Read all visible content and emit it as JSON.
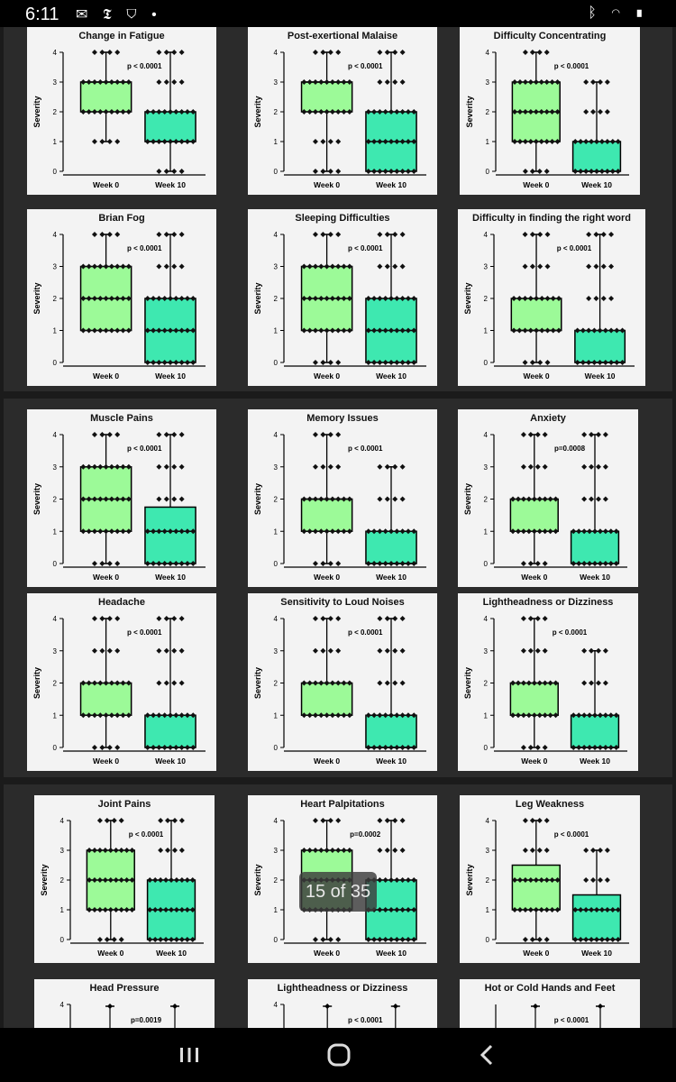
{
  "status_bar": {
    "time": "6:11",
    "left_icons": [
      "messenger-icon",
      "nytimes-icon",
      "shield-icon",
      "dot-icon"
    ],
    "right_icons": [
      "bluetooth-icon",
      "wifi-icon",
      "battery-icon"
    ]
  },
  "viewer": {
    "page_counter": "15 of 35"
  },
  "colors": {
    "week0": "#9cfa98",
    "week10": "#3ee8b0",
    "card_bg": "#f3f3f3",
    "page_bg": "#2b2b2b"
  },
  "chart_data": [
    {
      "type": "box",
      "title": "Change in Fatigue",
      "ylabel": "Severity",
      "categories": [
        "Week 0",
        "Week 10"
      ],
      "ylim": [
        0,
        4
      ],
      "yticks": [
        "0",
        "1",
        "2",
        "3",
        "4"
      ],
      "p_value": "p < 0.0001",
      "boxes": [
        {
          "min": 1,
          "q1": 2,
          "median": 3,
          "q3": 3,
          "max": 4
        },
        {
          "min": 0,
          "q1": 1,
          "median": 1,
          "q3": 2,
          "max": 4
        }
      ]
    },
    {
      "type": "box",
      "title": "Post-exertional Malaise",
      "ylabel": "Severity",
      "categories": [
        "Week 0",
        "Week 10"
      ],
      "ylim": [
        0,
        4
      ],
      "yticks": [
        "0",
        "1",
        "2",
        "3",
        "4"
      ],
      "p_value": "p < 0.0001",
      "boxes": [
        {
          "min": 0,
          "q1": 2,
          "median": 3,
          "q3": 3,
          "max": 4
        },
        {
          "min": 0,
          "q1": 0,
          "median": 1,
          "q3": 2,
          "max": 4
        }
      ]
    },
    {
      "type": "box",
      "title": "Difficulty Concentrating",
      "ylabel": "Severity",
      "categories": [
        "Week 0",
        "Week 10"
      ],
      "ylim": [
        0,
        4
      ],
      "yticks": [
        "0",
        "1",
        "2",
        "3",
        "4"
      ],
      "p_value": "p < 0.0001",
      "boxes": [
        {
          "min": 0,
          "q1": 1,
          "median": 2,
          "q3": 3,
          "max": 4
        },
        {
          "min": 0,
          "q1": 0,
          "median": 0,
          "q3": 1,
          "max": 3
        }
      ]
    },
    {
      "type": "box",
      "title": "Brian Fog",
      "ylabel": "Severity",
      "categories": [
        "Week 0",
        "Week 10"
      ],
      "ylim": [
        0,
        4
      ],
      "yticks": [
        "0",
        "1",
        "2",
        "3",
        "4"
      ],
      "p_value": "p < 0.0001",
      "boxes": [
        {
          "min": 1,
          "q1": 1,
          "median": 2,
          "q3": 3,
          "max": 4
        },
        {
          "min": 0,
          "q1": 0,
          "median": 1,
          "q3": 2,
          "max": 4
        }
      ]
    },
    {
      "type": "box",
      "title": "Sleeping Difficulties",
      "ylabel": "Severity",
      "categories": [
        "Week 0",
        "Week 10"
      ],
      "ylim": [
        0,
        4
      ],
      "yticks": [
        "0",
        "1",
        "2",
        "3",
        "4"
      ],
      "p_value": "p < 0.0001",
      "boxes": [
        {
          "min": 0,
          "q1": 1,
          "median": 2,
          "q3": 3,
          "max": 4
        },
        {
          "min": 0,
          "q1": 0,
          "median": 1,
          "q3": 2,
          "max": 4
        }
      ]
    },
    {
      "type": "box",
      "title": "Difficulty in finding the right word",
      "ylabel": "Severity",
      "categories": [
        "Week 0",
        "Week 10"
      ],
      "ylim": [
        0,
        4
      ],
      "yticks": [
        "0",
        "1",
        "2",
        "3",
        "4"
      ],
      "p_value": "p < 0.0001",
      "boxes": [
        {
          "min": 0,
          "q1": 1,
          "median": 1,
          "q3": 2,
          "max": 4
        },
        {
          "min": 0,
          "q1": 0,
          "median": 0,
          "q3": 1,
          "max": 4
        }
      ]
    },
    {
      "type": "box",
      "title": "Muscle Pains",
      "ylabel": "Severity",
      "categories": [
        "Week 0",
        "Week 10"
      ],
      "ylim": [
        0,
        4
      ],
      "yticks": [
        "0",
        "1",
        "2",
        "3",
        "4"
      ],
      "p_value": "p < 0.0001",
      "boxes": [
        {
          "min": 0,
          "q1": 1,
          "median": 2,
          "q3": 3,
          "max": 4
        },
        {
          "min": 0,
          "q1": 0,
          "median": 1,
          "q3": 1.75,
          "max": 4
        }
      ]
    },
    {
      "type": "box",
      "title": "Memory Issues",
      "ylabel": "Severity",
      "categories": [
        "Week 0",
        "Week 10"
      ],
      "ylim": [
        0,
        4
      ],
      "yticks": [
        "0",
        "1",
        "2",
        "3",
        "4"
      ],
      "p_value": "p < 0.0001",
      "boxes": [
        {
          "min": 0,
          "q1": 1,
          "median": 2,
          "q3": 2,
          "max": 4
        },
        {
          "min": 0,
          "q1": 0,
          "median": 0,
          "q3": 1,
          "max": 3
        }
      ]
    },
    {
      "type": "box",
      "title": "Anxiety",
      "ylabel": "Severity",
      "categories": [
        "Week 0",
        "Week 10"
      ],
      "ylim": [
        0,
        4
      ],
      "yticks": [
        "0",
        "1",
        "2",
        "3",
        "4"
      ],
      "p_value": "p=0.0008",
      "boxes": [
        {
          "min": 0,
          "q1": 1,
          "median": 1,
          "q3": 2,
          "max": 4
        },
        {
          "min": 0,
          "q1": 0,
          "median": 1,
          "q3": 1,
          "max": 4
        }
      ]
    },
    {
      "type": "box",
      "title": "Headache",
      "ylabel": "Severity",
      "categories": [
        "Week 0",
        "Week 10"
      ],
      "ylim": [
        0,
        4
      ],
      "yticks": [
        "0",
        "1",
        "2",
        "3",
        "4"
      ],
      "p_value": "p < 0.0001",
      "boxes": [
        {
          "min": 0,
          "q1": 1,
          "median": 1,
          "q3": 2,
          "max": 4
        },
        {
          "min": 0,
          "q1": 0,
          "median": 0,
          "q3": 1,
          "max": 4
        }
      ]
    },
    {
      "type": "box",
      "title": "Sensitivity to Loud Noises",
      "ylabel": "Severity",
      "categories": [
        "Week 0",
        "Week 10"
      ],
      "ylim": [
        0,
        4
      ],
      "yticks": [
        "0",
        "1",
        "2",
        "3",
        "4"
      ],
      "p_value": "p < 0.0001",
      "boxes": [
        {
          "min": 1,
          "q1": 1,
          "median": 1,
          "q3": 2,
          "max": 4
        },
        {
          "min": 0,
          "q1": 0,
          "median": 0,
          "q3": 1,
          "max": 4
        }
      ]
    },
    {
      "type": "box",
      "title": "Lightheadness or Dizziness",
      "ylabel": "Severity",
      "categories": [
        "Week 0",
        "Week 10"
      ],
      "ylim": [
        0,
        4
      ],
      "yticks": [
        "0",
        "1",
        "2",
        "3",
        "4"
      ],
      "p_value": "p < 0.0001",
      "boxes": [
        {
          "min": 0,
          "q1": 1,
          "median": 1,
          "q3": 2,
          "max": 4
        },
        {
          "min": 0,
          "q1": 0,
          "median": 0,
          "q3": 1,
          "max": 3
        }
      ]
    },
    {
      "type": "box",
      "title": "Joint Pains",
      "ylabel": "Severity",
      "categories": [
        "Week 0",
        "Week 10"
      ],
      "ylim": [
        0,
        4
      ],
      "yticks": [
        "0",
        "1",
        "2",
        "3",
        "4"
      ],
      "p_value": "p < 0.0001",
      "boxes": [
        {
          "min": 0,
          "q1": 1,
          "median": 2,
          "q3": 3,
          "max": 4
        },
        {
          "min": 0,
          "q1": 0,
          "median": 1,
          "q3": 2,
          "max": 4
        }
      ]
    },
    {
      "type": "box",
      "title": "Heart Palpitations",
      "ylabel": "Severity",
      "categories": [
        "Week 0",
        "Week 10"
      ],
      "ylim": [
        0,
        4
      ],
      "yticks": [
        "0",
        "1",
        "2",
        "3",
        "4"
      ],
      "p_value": "p=0.0002",
      "boxes": [
        {
          "min": 0,
          "q1": 1,
          "median": 2,
          "q3": 3,
          "max": 4
        },
        {
          "min": 0,
          "q1": 0,
          "median": 1,
          "q3": 2,
          "max": 4
        }
      ]
    },
    {
      "type": "box",
      "title": "Leg Weakness",
      "ylabel": "Severity",
      "categories": [
        "Week 0",
        "Week 10"
      ],
      "ylim": [
        0,
        4
      ],
      "yticks": [
        "0",
        "1",
        "2",
        "3",
        "4"
      ],
      "p_value": "p < 0.0001",
      "boxes": [
        {
          "min": 0,
          "q1": 1,
          "median": 2,
          "q3": 2.5,
          "max": 4
        },
        {
          "min": 0,
          "q1": 0,
          "median": 1,
          "q3": 1.5,
          "max": 3
        }
      ]
    },
    {
      "type": "box",
      "title": "Head  Pressure",
      "ylabel": "",
      "categories": [],
      "ylim": [
        0,
        4
      ],
      "yticks": [
        "4"
      ],
      "p_value": "p=0.0019",
      "boxes": []
    },
    {
      "type": "box",
      "title": "Lightheadness or Dizziness",
      "ylabel": "",
      "categories": [],
      "ylim": [
        0,
        4
      ],
      "yticks": [
        "4"
      ],
      "p_value": "p < 0.0001",
      "boxes": []
    },
    {
      "type": "box",
      "title": "Hot or Cold Hands and Feet",
      "ylabel": "",
      "categories": [],
      "ylim": [
        0,
        4
      ],
      "yticks": [],
      "p_value": "p < 0.0001",
      "boxes": []
    }
  ]
}
